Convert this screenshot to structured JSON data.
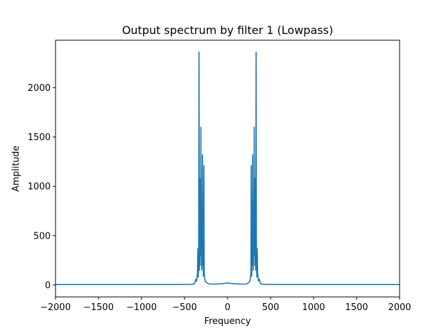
{
  "chart_data": {
    "type": "line",
    "title": "Output spectrum by filter 1 (Lowpass)",
    "xlabel": "Frequency",
    "ylabel": "Amplitude",
    "xlim": [
      -2000,
      2000
    ],
    "ylim": [
      -120,
      2480
    ],
    "xticks": [
      -2000,
      -1500,
      -1000,
      -500,
      0,
      500,
      1000,
      1500,
      2000
    ],
    "xtick_labels": [
      "−2000",
      "−1500",
      "−1000",
      "−500",
      "0",
      "500",
      "1000",
      "1500",
      "2000"
    ],
    "yticks": [
      0,
      500,
      1000,
      1500,
      2000
    ],
    "ytick_labels": [
      "0",
      "500",
      "1000",
      "1500",
      "2000"
    ],
    "grid": false,
    "series": [
      {
        "color": "#1f77b4",
        "x": [
          -2000,
          -1200,
          -600,
          -400,
          -380,
          -370,
          -360,
          -350,
          -345,
          -340,
          -336,
          -332,
          -328,
          -325,
          -322,
          -318,
          -314,
          -310,
          -306,
          -303,
          -300,
          -296,
          -292,
          -288,
          -284,
          -281,
          -278,
          -275,
          -272,
          -268,
          -264,
          -260,
          -256,
          -252,
          -249,
          -246,
          -243,
          -240,
          -236,
          -232,
          -228,
          -225,
          -222,
          -219,
          -216,
          -212,
          -206,
          -200,
          -150,
          -100,
          -60,
          -30,
          0,
          30,
          60,
          100,
          150,
          200,
          206,
          212,
          216,
          219,
          222,
          225,
          228,
          232,
          236,
          240,
          243,
          246,
          249,
          252,
          256,
          260,
          264,
          268,
          272,
          275,
          278,
          281,
          284,
          288,
          292,
          296,
          300,
          303,
          306,
          310,
          314,
          318,
          322,
          325,
          328,
          332,
          336,
          340,
          345,
          350,
          360,
          370,
          380,
          400,
          600,
          1200,
          2000
        ],
        "y": [
          5,
          5,
          6,
          8,
          20,
          60,
          40,
          120,
          370,
          80,
          300,
          2360,
          150,
          250,
          1080,
          200,
          400,
          1600,
          300,
          700,
          150,
          500,
          1320,
          200,
          350,
          90,
          600,
          1210,
          150,
          90,
          60,
          40,
          35,
          30,
          28,
          25,
          24,
          22,
          20,
          18,
          16,
          15,
          14,
          13,
          12,
          11,
          10,
          10,
          10,
          12,
          15,
          18,
          20,
          18,
          15,
          12,
          10,
          10,
          10,
          11,
          12,
          13,
          14,
          15,
          16,
          18,
          20,
          22,
          24,
          25,
          28,
          30,
          35,
          40,
          60,
          90,
          150,
          1210,
          600,
          90,
          350,
          200,
          1320,
          500,
          150,
          700,
          300,
          1600,
          400,
          200,
          1080,
          250,
          150,
          2360,
          300,
          80,
          370,
          120,
          40,
          60,
          20,
          8,
          6,
          5,
          5
        ]
      }
    ]
  }
}
